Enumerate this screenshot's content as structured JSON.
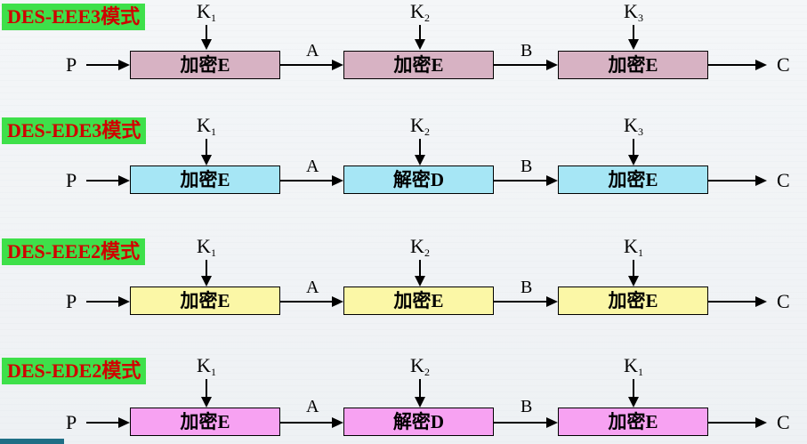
{
  "colors": {
    "row1": "#d7b2c3",
    "row2": "#a6e6f5",
    "row3": "#fbf7a6",
    "row4": "#f7a2f2",
    "label_bg": "#3ee04a",
    "label_text": "#d00000"
  },
  "input": "P",
  "output": "C",
  "mid1": "A",
  "mid2": "B",
  "key_letter": "K",
  "rows": [
    {
      "mode": "DES-EEE3模式",
      "keys": [
        "1",
        "2",
        "3"
      ],
      "boxes": [
        "加密E",
        "加密E",
        "加密E"
      ]
    },
    {
      "mode": "DES-EDE3模式",
      "keys": [
        "1",
        "2",
        "3"
      ],
      "boxes": [
        "加密E",
        "解密D",
        "加密E"
      ]
    },
    {
      "mode": "DES-EEE2模式",
      "keys": [
        "1",
        "2",
        "1"
      ],
      "boxes": [
        "加密E",
        "加密E",
        "加密E"
      ]
    },
    {
      "mode": "DES-EDE2模式",
      "keys": [
        "1",
        "2",
        "1"
      ],
      "boxes": [
        "加密E",
        "解密D",
        "加密E"
      ]
    }
  ]
}
